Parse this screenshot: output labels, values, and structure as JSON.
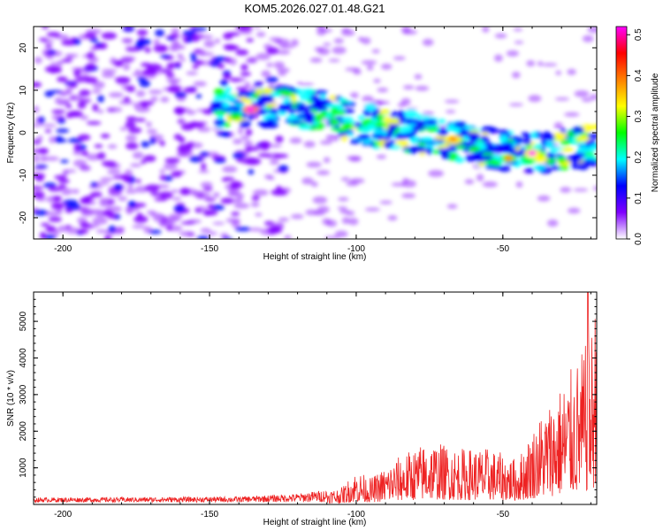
{
  "title": "KOM5.2026.027.01.48.G21",
  "chart_data": [
    {
      "type": "heatmap",
      "name": "spectrogram",
      "xlabel": "Height of straight line (km)",
      "ylabel": "Frequency (Hz)",
      "xlim": [
        -210,
        -18
      ],
      "ylim": [
        -25,
        25
      ],
      "xticks": [
        -200,
        -150,
        -100,
        -50
      ],
      "yticks": [
        -20,
        -10,
        0,
        10,
        20
      ],
      "colorbar": {
        "label": "Normalized spectral amplitude",
        "range": [
          0.0,
          0.52
        ],
        "ticks": [
          0.0,
          0.1,
          0.2,
          0.3,
          0.4,
          0.5
        ],
        "colors": [
          "#ffffff",
          "#7f00ff",
          "#0000ff",
          "#00ffff",
          "#00ff00",
          "#ffff00",
          "#ff8000",
          "#ff0000",
          "#ff00ff"
        ]
      },
      "ridge": {
        "description": "signal band",
        "points": [
          [
            -145,
            6
          ],
          [
            -135,
            6
          ],
          [
            -120,
            6
          ],
          [
            -110,
            5
          ],
          [
            -100,
            2
          ],
          [
            -90,
            1
          ],
          [
            -80,
            0
          ],
          [
            -70,
            -1
          ],
          [
            -60,
            -3
          ],
          [
            -50,
            -4
          ],
          [
            -40,
            -5
          ],
          [
            -30,
            -4
          ],
          [
            -18,
            -3
          ]
        ]
      },
      "peaks": [
        {
          "x": -136,
          "y": 5.5,
          "value": 0.52
        },
        {
          "x": -40,
          "y": -4.8,
          "value": 0.5
        },
        {
          "x": -67,
          "y": -1.5,
          "value": 0.42
        },
        {
          "x": -48,
          "y": -6,
          "value": 0.38
        }
      ]
    },
    {
      "type": "line",
      "name": "snr",
      "xlabel": "Height of straight line (km)",
      "ylabel": "SNR (10 * v/v)",
      "xlim": [
        -210,
        -18
      ],
      "ylim": [
        0,
        5800
      ],
      "xticks": [
        -200,
        -150,
        -100,
        -50
      ],
      "yticks": [
        1000,
        2000,
        3000,
        4000,
        5000
      ],
      "color": "#ee2222",
      "envelope": [
        [
          -210,
          140
        ],
        [
          -180,
          150
        ],
        [
          -140,
          170
        ],
        [
          -120,
          260
        ],
        [
          -105,
          450
        ],
        [
          -100,
          900
        ],
        [
          -95,
          700
        ],
        [
          -85,
          1300
        ],
        [
          -75,
          1700
        ],
        [
          -65,
          1500
        ],
        [
          -55,
          1500
        ],
        [
          -45,
          1200
        ],
        [
          -38,
          2300
        ],
        [
          -30,
          3200
        ],
        [
          -25,
          3800
        ],
        [
          -20,
          4500
        ],
        [
          -18,
          5800
        ]
      ],
      "peak": {
        "x": -21,
        "y": 5800
      }
    }
  ]
}
